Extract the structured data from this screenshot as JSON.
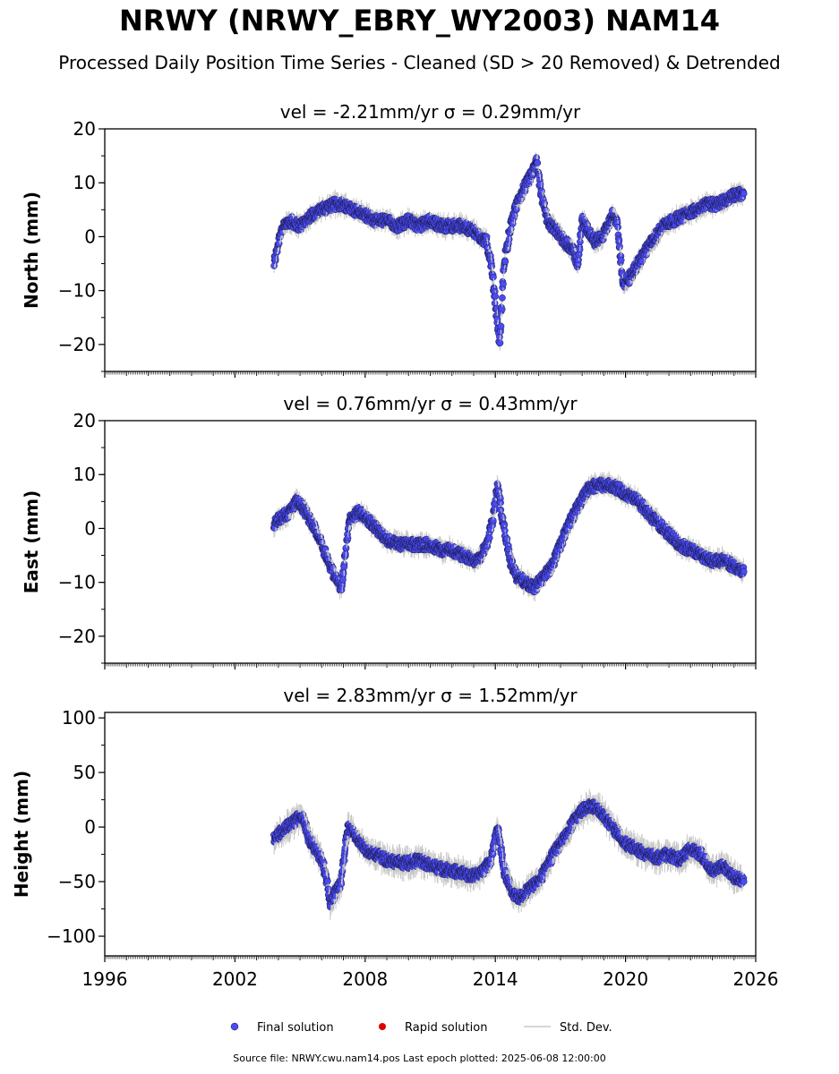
{
  "title": "NRWY (NRWY_EBRY_WY2003) NAM14",
  "subtitle": "Processed Daily Position Time Series - Cleaned (SD > 20 Removed) & Detrended",
  "footer": "Source file: NRWY.cwu.nam14.pos  Last epoch plotted: 2025-06-08 12:00:00",
  "colors": {
    "final": "#4b4bf5",
    "rapid": "#e00000",
    "stddev": "#c8c8c8",
    "edge": "#1a1a4a"
  },
  "chart_data": [
    {
      "type": "scatter",
      "title": "vel = -2.21mm/yr   σ = 0.29mm/yr",
      "ylabel": "North (mm)",
      "xlim": [
        1996,
        2026
      ],
      "ylim": [
        -25,
        20
      ],
      "yticks": [
        -20,
        -10,
        0,
        10,
        20
      ],
      "ytick_labels": [
        "−20",
        "−10",
        "0",
        "10",
        "20"
      ],
      "series": [
        {
          "name": "Final solution",
          "x": [
            2003.8,
            2004.1,
            2004.5,
            2005.0,
            2005.5,
            2006.0,
            2006.5,
            2007.0,
            2007.5,
            2008.0,
            2008.5,
            2009.0,
            2009.5,
            2010.0,
            2010.5,
            2011.0,
            2011.5,
            2012.0,
            2012.5,
            2013.0,
            2013.3,
            2013.6,
            2013.8,
            2014.0,
            2014.2,
            2014.4,
            2014.7,
            2015.0,
            2015.3,
            2015.6,
            2015.9,
            2016.1,
            2016.4,
            2016.8,
            2017.2,
            2017.5,
            2017.8,
            2018.0,
            2018.3,
            2018.6,
            2018.9,
            2019.2,
            2019.4,
            2019.6,
            2019.9,
            2020.3,
            2020.7,
            2021.2,
            2021.7,
            2022.2,
            2022.7,
            2023.2,
            2023.7,
            2024.2,
            2024.7,
            2025.2,
            2025.45
          ],
          "y": [
            -5,
            1,
            3,
            2,
            4,
            5,
            6,
            6,
            5,
            4,
            3,
            3,
            2,
            3,
            2,
            3,
            2,
            2,
            2,
            1,
            0,
            -1,
            -5,
            -12,
            -20,
            -5,
            2,
            6,
            9,
            11,
            14,
            8,
            3,
            1,
            -1,
            -2,
            -5,
            3,
            1,
            -1,
            0,
            2,
            4,
            3,
            -9,
            -7,
            -4,
            -1,
            2,
            3,
            4,
            5,
            6,
            6,
            7,
            8,
            8
          ]
        },
        {
          "name": "Rapid solution",
          "x": [],
          "y": []
        }
      ]
    },
    {
      "type": "scatter",
      "title": "vel = 0.76mm/yr   σ = 0.43mm/yr",
      "ylabel": "East (mm)",
      "xlim": [
        1996,
        2026
      ],
      "ylim": [
        -25,
        20
      ],
      "yticks": [
        -20,
        -10,
        0,
        10,
        20
      ],
      "ytick_labels": [
        "−20",
        "−10",
        "0",
        "10",
        "20"
      ],
      "series": [
        {
          "name": "Final solution",
          "x": [
            2003.8,
            2004.1,
            2004.5,
            2004.8,
            2005.1,
            2005.4,
            2005.7,
            2006.0,
            2006.3,
            2006.6,
            2006.9,
            2007.3,
            2007.7,
            2008.0,
            2008.3,
            2008.7,
            2009.0,
            2009.5,
            2010.0,
            2010.5,
            2011.0,
            2011.5,
            2012.0,
            2012.5,
            2013.0,
            2013.3,
            2013.6,
            2013.9,
            2014.1,
            2014.4,
            2014.7,
            2015.0,
            2015.4,
            2015.8,
            2016.2,
            2016.6,
            2017.0,
            2017.4,
            2017.8,
            2018.2,
            2018.6,
            2019.0,
            2019.4,
            2019.8,
            2020.2,
            2020.6,
            2021.0,
            2021.5,
            2022.0,
            2022.5,
            2023.0,
            2023.5,
            2024.0,
            2024.5,
            2025.0,
            2025.45
          ],
          "y": [
            1,
            2,
            3,
            5,
            4,
            2,
            0,
            -3,
            -6,
            -9,
            -11,
            2,
            3,
            2,
            1,
            -1,
            -2,
            -3,
            -3,
            -3,
            -3,
            -4,
            -4,
            -5,
            -6,
            -5,
            -3,
            2,
            8,
            0,
            -6,
            -9,
            -10,
            -11,
            -9,
            -7,
            -3,
            1,
            4,
            7,
            8,
            8,
            8,
            7,
            6,
            5,
            3,
            1,
            -1,
            -3,
            -4,
            -5,
            -6,
            -6,
            -7,
            -8
          ]
        },
        {
          "name": "Rapid solution",
          "x": [],
          "y": []
        }
      ]
    },
    {
      "type": "scatter",
      "title": "vel = 2.83mm/yr   σ = 1.52mm/yr",
      "ylabel": "Height (mm)",
      "xlabel": "",
      "xlim": [
        1996,
        2026
      ],
      "ylim": [
        -118,
        105
      ],
      "yticks": [
        -100,
        -50,
        0,
        50,
        100
      ],
      "ytick_labels": [
        "−100",
        "−50",
        "0",
        "50",
        "100"
      ],
      "xticks": [
        1996,
        2002,
        2008,
        2014,
        2020,
        2026
      ],
      "xtick_labels": [
        "1996",
        "2002",
        "2008",
        "2014",
        "2020",
        "2026"
      ],
      "series": [
        {
          "name": "Final solution",
          "x": [
            2003.8,
            2004.1,
            2004.4,
            2004.7,
            2004.9,
            2005.1,
            2005.4,
            2005.7,
            2006.0,
            2006.2,
            2006.4,
            2006.6,
            2006.9,
            2007.2,
            2007.6,
            2008.0,
            2008.5,
            2009.0,
            2009.5,
            2010.0,
            2010.5,
            2011.0,
            2011.5,
            2012.0,
            2012.5,
            2013.0,
            2013.4,
            2013.8,
            2014.1,
            2014.4,
            2014.8,
            2015.2,
            2015.6,
            2016.0,
            2016.4,
            2016.8,
            2017.2,
            2017.6,
            2018.0,
            2018.4,
            2018.8,
            2019.2,
            2019.6,
            2020.0,
            2020.5,
            2021.0,
            2021.5,
            2022.0,
            2022.5,
            2023.0,
            2023.5,
            2024.0,
            2024.5,
            2025.0,
            2025.45
          ],
          "y": [
            -10,
            -5,
            0,
            5,
            8,
            10,
            -10,
            -20,
            -30,
            -45,
            -70,
            -60,
            -50,
            0,
            -10,
            -20,
            -25,
            -30,
            -32,
            -33,
            -30,
            -35,
            -38,
            -40,
            -42,
            -45,
            -40,
            -30,
            0,
            -40,
            -60,
            -65,
            -55,
            -50,
            -35,
            -20,
            -10,
            5,
            15,
            20,
            15,
            5,
            -5,
            -15,
            -20,
            -25,
            -28,
            -25,
            -30,
            -20,
            -25,
            -40,
            -35,
            -45,
            -50
          ]
        },
        {
          "name": "Rapid solution",
          "x": [],
          "y": []
        }
      ]
    }
  ],
  "legend": {
    "placement": "bottom",
    "items": [
      {
        "label": "Final solution",
        "marker": "dot",
        "color": "#4b4bf5"
      },
      {
        "label": "Rapid solution",
        "marker": "dot",
        "color": "#e00000"
      },
      {
        "label": "Std. Dev.",
        "marker": "line",
        "color": "#c8c8c8"
      }
    ]
  }
}
